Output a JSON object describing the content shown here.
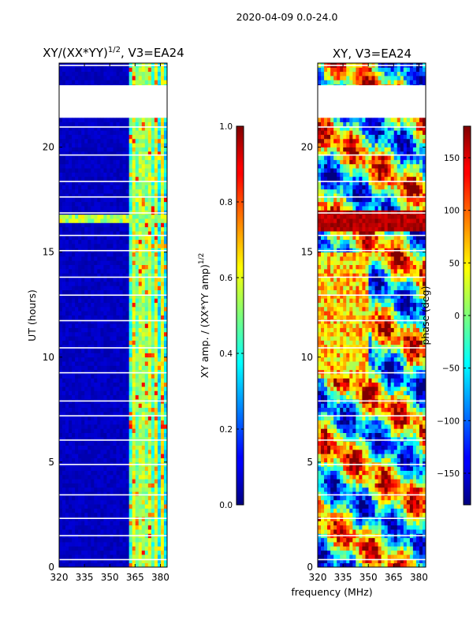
{
  "figure": {
    "suptitle": "2020-04-09 0.0-24.0",
    "xlabel_shared": "frequency (MHz)"
  },
  "chart_data": [
    {
      "type": "heatmap",
      "title": "XY/(XX*YY)^{1/2}, V3=EA24",
      "title_main": "XY/(XX*YY)",
      "title_exp": "1/2",
      "title_tail": ", V3=EA24",
      "xlabel": "frequency (MHz)",
      "ylabel": "UT (hours)",
      "xlim": [
        320,
        384
      ],
      "ylim": [
        0,
        24
      ],
      "xticks": [
        320,
        335,
        350,
        365,
        380
      ],
      "yticks": [
        0,
        5,
        10,
        15,
        20
      ],
      "data_gap_hours": [
        21.4,
        22.9
      ],
      "colorbar": {
        "label": "XY amp. / (XX*YY amp)^{1/2}",
        "label_main": "XY amp. / (XX*YY amp)",
        "label_exp": "1/2",
        "range": [
          0.0,
          1.0
        ],
        "ticks": [
          "0.0",
          "0.2",
          "0.4",
          "0.6",
          "0.8",
          "1.0"
        ],
        "colormap": "jet"
      }
    },
    {
      "type": "heatmap",
      "title": "XY, V3=EA24",
      "xlabel": "frequency (MHz)",
      "ylabel": "",
      "xlim": [
        320,
        384
      ],
      "ylim": [
        0,
        24
      ],
      "xticks": [
        320,
        335,
        350,
        365,
        380
      ],
      "yticks": [
        0,
        5,
        10,
        15,
        20
      ],
      "data_gap_hours": [
        21.4,
        22.9
      ],
      "colorbar": {
        "label": "phase (deg)",
        "range": [
          -180,
          180
        ],
        "ticks": [
          "−150",
          "−100",
          "−50",
          "0",
          "50",
          "100",
          "150"
        ],
        "tick_values": [
          -150,
          -100,
          -50,
          0,
          50,
          100,
          150
        ],
        "colormap": "jet"
      }
    }
  ]
}
